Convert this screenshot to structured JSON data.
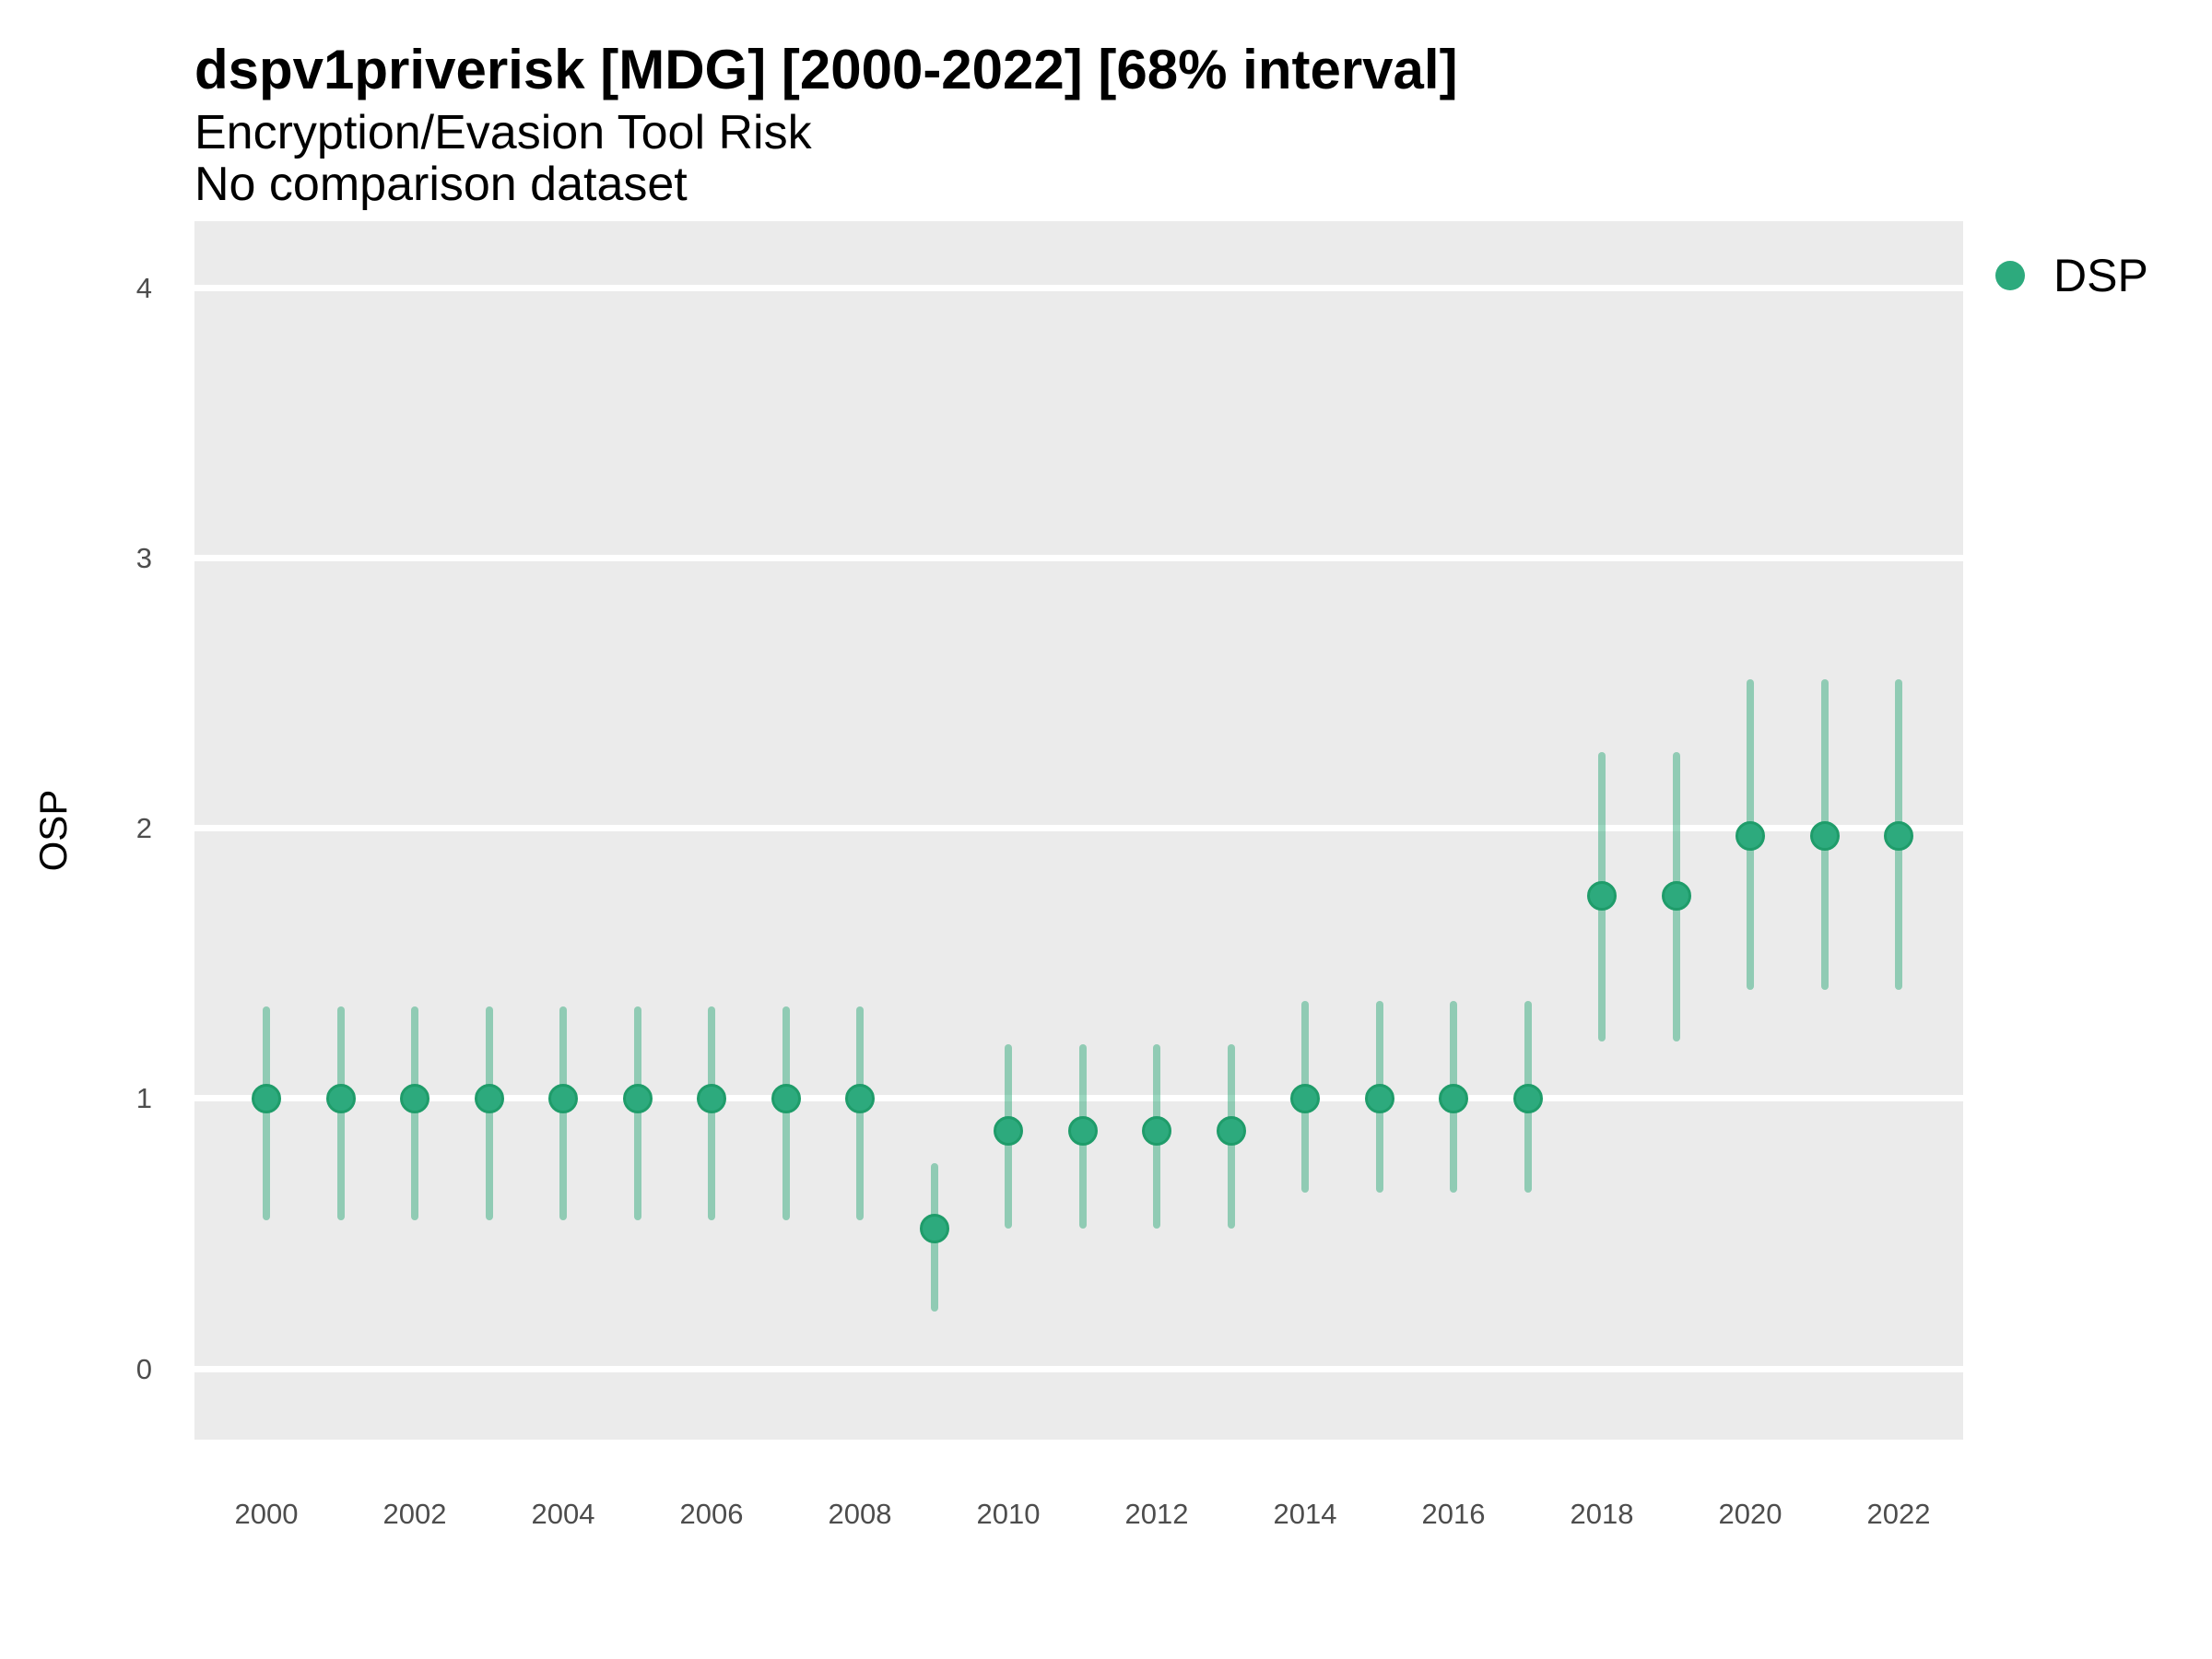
{
  "figure": {
    "title": "dspv1priverisk [MDG] [2000-2022] [68% interval]",
    "subtitle": "Encryption/Evasion Tool Risk",
    "caption": "No comparison dataset"
  },
  "y_axis": {
    "title": "OSP",
    "ticks": [
      0,
      1,
      2,
      3,
      4
    ]
  },
  "x_axis": {
    "ticks": [
      2000,
      2002,
      2004,
      2006,
      2008,
      2010,
      2012,
      2014,
      2016,
      2018,
      2020,
      2022
    ]
  },
  "legend": {
    "items": [
      {
        "label": "DSP",
        "swatch_color": "#2daa7d"
      }
    ]
  },
  "colors": {
    "panel_background": "#ebebeb",
    "gridline": "#ffffff",
    "point_fill": "#2daa7d",
    "point_stroke": "#1f9c6a",
    "interval_bar": "rgba(42,168,120,0.47)",
    "tick_text": "#4d4d4d"
  },
  "chart_data": {
    "type": "pointrange",
    "title": "dspv1priverisk [MDG] [2000-2022] [68% interval]",
    "subtitle": "Encryption/Evasion Tool Risk",
    "caption": "No comparison dataset",
    "xlabel": "",
    "ylabel": "OSP",
    "interval": "68%",
    "x_range": [
      2000,
      2022
    ],
    "ylim": [
      -0.26,
      4.25
    ],
    "grid": "horizontal-major-only",
    "legend_position": "right",
    "series": [
      {
        "name": "DSP",
        "points": [
          {
            "year": 2000,
            "value": 1.0,
            "lower": 0.55,
            "upper": 1.34
          },
          {
            "year": 2001,
            "value": 1.0,
            "lower": 0.55,
            "upper": 1.34
          },
          {
            "year": 2002,
            "value": 1.0,
            "lower": 0.55,
            "upper": 1.34
          },
          {
            "year": 2003,
            "value": 1.0,
            "lower": 0.55,
            "upper": 1.34
          },
          {
            "year": 2004,
            "value": 1.0,
            "lower": 0.55,
            "upper": 1.34
          },
          {
            "year": 2005,
            "value": 1.0,
            "lower": 0.55,
            "upper": 1.34
          },
          {
            "year": 2006,
            "value": 1.0,
            "lower": 0.55,
            "upper": 1.34
          },
          {
            "year": 2007,
            "value": 1.0,
            "lower": 0.55,
            "upper": 1.34
          },
          {
            "year": 2008,
            "value": 1.0,
            "lower": 0.55,
            "upper": 1.34
          },
          {
            "year": 2009,
            "value": 0.52,
            "lower": 0.21,
            "upper": 0.76
          },
          {
            "year": 2010,
            "value": 0.88,
            "lower": 0.52,
            "upper": 1.2
          },
          {
            "year": 2011,
            "value": 0.88,
            "lower": 0.52,
            "upper": 1.2
          },
          {
            "year": 2012,
            "value": 0.88,
            "lower": 0.52,
            "upper": 1.2
          },
          {
            "year": 2013,
            "value": 0.88,
            "lower": 0.52,
            "upper": 1.2
          },
          {
            "year": 2014,
            "value": 1.0,
            "lower": 0.65,
            "upper": 1.36
          },
          {
            "year": 2015,
            "value": 1.0,
            "lower": 0.65,
            "upper": 1.36
          },
          {
            "year": 2016,
            "value": 1.0,
            "lower": 0.65,
            "upper": 1.36
          },
          {
            "year": 2017,
            "value": 1.0,
            "lower": 0.65,
            "upper": 1.36
          },
          {
            "year": 2018,
            "value": 1.75,
            "lower": 1.21,
            "upper": 2.28
          },
          {
            "year": 2019,
            "value": 1.75,
            "lower": 1.21,
            "upper": 2.28
          },
          {
            "year": 2020,
            "value": 1.97,
            "lower": 1.4,
            "upper": 2.55
          },
          {
            "year": 2021,
            "value": 1.97,
            "lower": 1.4,
            "upper": 2.55
          },
          {
            "year": 2022,
            "value": 1.97,
            "lower": 1.4,
            "upper": 2.55
          }
        ]
      }
    ]
  }
}
